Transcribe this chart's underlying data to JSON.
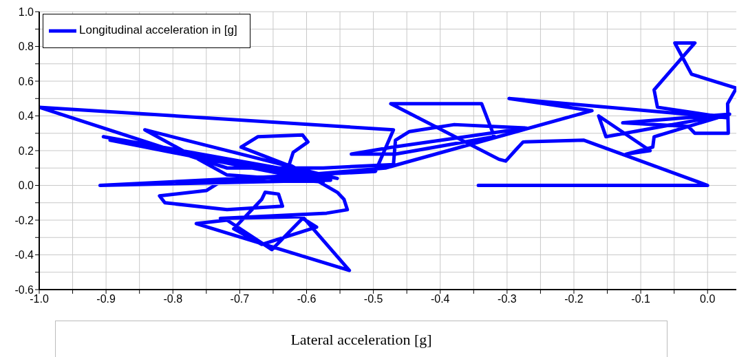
{
  "chart_data": {
    "type": "line",
    "xlabel": "Lateral acceleration [g]",
    "legend": "top left",
    "grid": true,
    "marker": "none",
    "line_style": "solid",
    "xlim": [
      -1.0,
      0.043
    ],
    "ylim": [
      -0.6,
      1.0
    ],
    "xticks": [
      {
        "value": -1.0,
        "label": "-1.0"
      },
      {
        "value": -0.95,
        "label": null
      },
      -0.9,
      {
        "value": -0.85,
        "label": null
      },
      -0.8,
      {
        "value": -0.75,
        "label": null
      },
      -0.7,
      {
        "value": -0.65,
        "label": null
      },
      -0.6,
      {
        "value": -0.55,
        "label": null
      },
      -0.5,
      {
        "value": -0.45,
        "label": null
      },
      -0.4,
      {
        "value": -0.35,
        "label": null
      },
      -0.3,
      {
        "value": -0.25,
        "label": null
      },
      -0.2,
      {
        "value": -0.15,
        "label": null
      },
      -0.1,
      {
        "value": -0.05,
        "label": null
      },
      {
        "value": 0,
        "label": "0.0"
      }
    ],
    "yticks": [
      -0.6,
      {
        "value": -0.5,
        "label": null
      },
      -0.4,
      {
        "value": -0.3,
        "label": null
      },
      -0.2,
      {
        "value": -0.1,
        "label": null
      },
      {
        "value": 0,
        "label": "0.0"
      },
      {
        "value": 0.1,
        "label": null
      },
      0.2,
      {
        "value": 0.3,
        "label": null
      },
      0.4,
      {
        "value": 0.5,
        "label": null
      },
      0.6,
      {
        "value": 0.7,
        "label": null
      },
      0.8,
      {
        "value": 0.9,
        "label": null
      },
      {
        "value": 1.0,
        "label": "1.0"
      }
    ],
    "series": [
      {
        "name": "Longitudinal acceleration in  [g]",
        "color": "#0000ff",
        "x": [
          -0.343,
          0.0,
          -0.185,
          -0.276,
          -0.288,
          -0.302,
          -0.312,
          -0.474,
          -0.338,
          -0.319,
          -0.467,
          -0.533,
          -0.472,
          -0.271,
          -0.379,
          -0.446,
          -0.467,
          -0.47,
          -0.575,
          -0.719,
          -1.0,
          -0.47,
          -0.497,
          -0.909,
          -0.564,
          -0.904,
          -0.554,
          -0.842,
          -0.719,
          -0.575,
          -0.894,
          -0.59,
          -0.698,
          -0.673,
          -0.606,
          -0.598,
          -0.62,
          -0.626,
          -0.554,
          -0.544,
          -0.539,
          -0.57,
          -0.729,
          -0.606,
          -0.536,
          -0.765,
          -0.719,
          -0.652,
          -0.606,
          -0.585,
          -0.667,
          -0.709,
          -0.667,
          -0.662,
          -0.642,
          -0.636,
          -0.719,
          -0.812,
          -0.82,
          -0.75,
          -0.729,
          -0.482,
          -0.173,
          -0.297,
          0.028,
          -0.075,
          -0.08,
          -0.019,
          -0.049,
          -0.024,
          0.043,
          0.03,
          0.031,
          -0.019,
          -0.029,
          -0.127,
          0.033,
          -0.152,
          -0.163,
          -0.086,
          -0.122,
          -0.082,
          -0.08,
          0.015
        ],
        "values": [
          0.0,
          0.0,
          0.26,
          0.25,
          0.2,
          0.14,
          0.15,
          0.47,
          0.47,
          0.28,
          0.18,
          0.18,
          0.22,
          0.33,
          0.35,
          0.31,
          0.26,
          0.12,
          0.1,
          0.1,
          0.45,
          0.32,
          0.08,
          0.0,
          0.03,
          0.28,
          0.04,
          0.32,
          0.06,
          0.02,
          0.26,
          0.06,
          0.22,
          0.28,
          0.29,
          0.25,
          0.19,
          0.12,
          -0.04,
          -0.08,
          -0.14,
          -0.16,
          -0.19,
          -0.18,
          -0.49,
          -0.22,
          -0.2,
          -0.37,
          -0.19,
          -0.24,
          -0.34,
          -0.25,
          -0.08,
          -0.04,
          -0.05,
          -0.12,
          -0.14,
          -0.1,
          -0.06,
          -0.03,
          0.02,
          0.1,
          0.43,
          0.5,
          0.39,
          0.45,
          0.55,
          0.82,
          0.82,
          0.64,
          0.56,
          0.47,
          0.3,
          0.3,
          0.34,
          0.36,
          0.41,
          0.28,
          0.4,
          0.2,
          0.18,
          0.22,
          0.28,
          0.39
        ]
      }
    ]
  }
}
